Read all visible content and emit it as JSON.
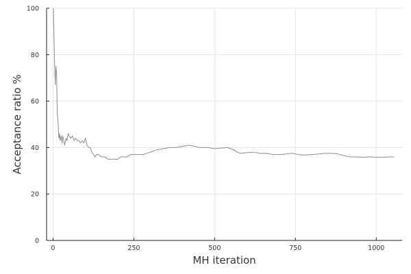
{
  "chart_data": {
    "type": "line",
    "title": "",
    "xlabel": "MH iteration",
    "ylabel": "Acceptance ratio %",
    "xlim": [
      -20,
      1080
    ],
    "ylim": [
      0,
      100
    ],
    "xticks": [
      0,
      250,
      500,
      750,
      1000
    ],
    "yticks": [
      0,
      20,
      40,
      60,
      80,
      100
    ],
    "grid": true,
    "legend": "none",
    "series": [
      {
        "color": "#8c8c8c",
        "x": [
          1,
          3,
          5,
          7,
          9,
          11,
          13,
          15,
          18,
          20,
          22,
          25,
          28,
          30,
          33,
          36,
          40,
          43,
          47,
          50,
          55,
          60,
          65,
          70,
          75,
          80,
          85,
          90,
          95,
          100,
          105,
          110,
          115,
          120,
          125,
          130,
          135,
          140,
          150,
          160,
          170,
          180,
          190,
          200,
          210,
          220,
          230,
          240,
          250,
          260,
          270,
          280,
          300,
          320,
          340,
          360,
          380,
          400,
          420,
          440,
          450,
          460,
          480,
          500,
          520,
          540,
          560,
          570,
          580,
          600,
          620,
          640,
          660,
          680,
          700,
          720,
          740,
          760,
          780,
          800,
          820,
          840,
          860,
          880,
          900,
          920,
          940,
          960,
          980,
          1000,
          1020,
          1040,
          1055
        ],
        "y": [
          100,
          88,
          75,
          67,
          75,
          72,
          55,
          52,
          44,
          46,
          43,
          45,
          42,
          45,
          43,
          41,
          44,
          43,
          46,
          45,
          44,
          45,
          43,
          44,
          43,
          43,
          42,
          43,
          42,
          44,
          41,
          40,
          40,
          38,
          37,
          36,
          37,
          37,
          36,
          36,
          35,
          35,
          35,
          35,
          36,
          36,
          36,
          37,
          37,
          37,
          37,
          37,
          38,
          39,
          39.5,
          40,
          40,
          40.5,
          41,
          40.5,
          40,
          40,
          40,
          39.5,
          39.8,
          40,
          39,
          38,
          37.5,
          37.8,
          38,
          37.5,
          37.5,
          37,
          37,
          37.2,
          37.5,
          37,
          36.8,
          37,
          37.2,
          37.5,
          37.5,
          37.3,
          36.5,
          36,
          36,
          35.8,
          36,
          35.8,
          35.8,
          36,
          36
        ]
      }
    ]
  }
}
